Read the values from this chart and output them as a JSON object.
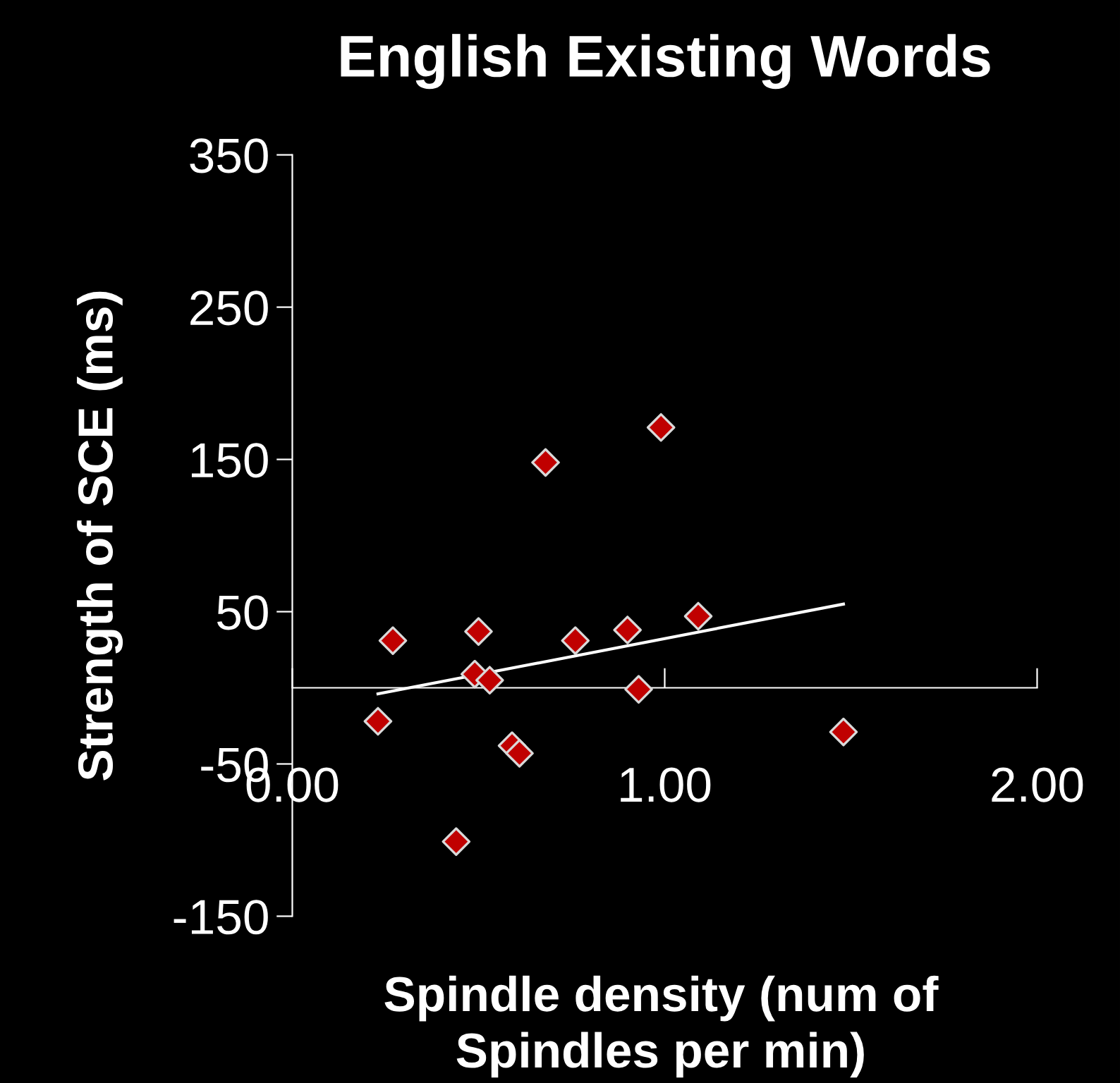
{
  "chart_data": {
    "type": "scatter",
    "title": "English Existing Words",
    "xlabel": "Spindle density (num of\nSpindles per min)",
    "ylabel": "Strength of SCE (ms)",
    "xlim": [
      0,
      2
    ],
    "xticks": [
      {
        "value": 0,
        "label": "0.00"
      },
      {
        "value": 1,
        "label": "1.00"
      },
      {
        "value": 2,
        "label": "2.00"
      }
    ],
    "ylim": [
      -150,
      350
    ],
    "yticks": [
      -150,
      -50,
      50,
      150,
      250,
      350
    ],
    "grid": false,
    "legend": false,
    "series": [
      {
        "marker": "diamond",
        "color": "#c00000",
        "x": [
          0.23,
          0.27,
          0.44,
          0.49,
          0.5,
          0.53,
          0.59,
          0.61,
          0.68,
          0.76,
          0.9,
          0.93,
          0.99,
          1.09,
          1.48
        ],
        "values": [
          -22,
          31,
          -101,
          9,
          37,
          5,
          -38,
          -43,
          148,
          31,
          38,
          -1,
          171,
          47,
          -29
        ]
      },
      {
        "type": "line",
        "marker": "none",
        "color": "#ffffff",
        "x": [
          0.23,
          1.48
        ],
        "values": [
          -4,
          55
        ]
      }
    ]
  }
}
